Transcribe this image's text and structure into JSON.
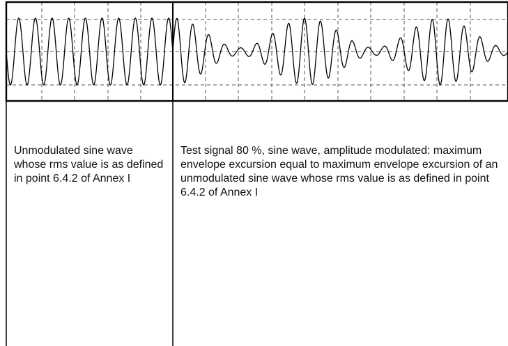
{
  "colors": {
    "line": "#000000",
    "grid": "#555555",
    "text": "#111111",
    "background": "#ffffff"
  },
  "waveform": {
    "unmodulated": {
      "cycles": 10
    },
    "modulated": {
      "modulation_percent": 80,
      "envelope_cycles": 2.5,
      "carrier_cycles": 21
    }
  },
  "captions": {
    "left": "Unmodulated sine wave whose rms value is as defined in point 6.4.2 of Annex I",
    "right": "Test signal 80 %, sine wave, amplitude modulated: maximum envelope excursion equal to maximum envelope excursion of an unmodulated sine wave whose rms value is as defined in point 6.4.2 of Annex I"
  }
}
